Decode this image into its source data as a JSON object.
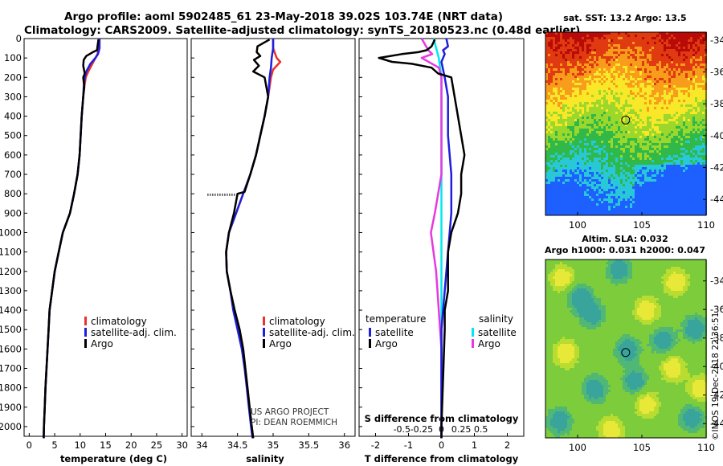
{
  "header": {
    "title_line1": "Argo profile: aoml 5902485_61 23-May-2018 39.02S 103.74E (NRT data)",
    "title_line2": "Climatology: CARS2009. Satellite-adjusted climatology: synTS_20180523.nc (0.48d earlier)"
  },
  "colors": {
    "climatology": "#e8322a",
    "satellite_adj": "#1e1edc",
    "argo": "#000000",
    "t_diff_satellite": "#1e1edc",
    "s_diff_satellite": "#00e8f0",
    "s_diff_argo": "#e838e0"
  },
  "chart_data": [
    {
      "type": "line",
      "name": "temperature-profile",
      "xlabel": "temperature (deg C)",
      "ylabel": "depth",
      "xlim": [
        -1,
        31
      ],
      "ylim": [
        2050,
        0
      ],
      "xticks": [
        0,
        5,
        10,
        15,
        20,
        25,
        30
      ],
      "yticks": [
        0,
        100,
        200,
        300,
        400,
        500,
        600,
        700,
        800,
        900,
        1000,
        1100,
        1200,
        1300,
        1400,
        1500,
        1600,
        1700,
        1800,
        1900,
        2000
      ],
      "legend": [
        "climatology",
        "satellite-adj. clim.",
        "Argo"
      ],
      "series": [
        {
          "name": "climatology",
          "points": [
            [
              13.6,
              0
            ],
            [
              13.6,
              50
            ],
            [
              13.4,
              80
            ],
            [
              13.0,
              100
            ],
            [
              12.4,
              130
            ],
            [
              11.6,
              170
            ],
            [
              11.1,
              200
            ],
            [
              10.8,
              250
            ],
            [
              10.6,
              300
            ],
            [
              10.3,
              400
            ],
            [
              10.1,
              500
            ],
            [
              9.9,
              600
            ],
            [
              9.5,
              700
            ],
            [
              8.8,
              800
            ],
            [
              8.0,
              900
            ],
            [
              6.6,
              1000
            ],
            [
              5.8,
              1100
            ],
            [
              5.0,
              1200
            ],
            [
              4.5,
              1300
            ],
            [
              4.0,
              1400
            ],
            [
              3.8,
              1500
            ],
            [
              3.6,
              1600
            ],
            [
              3.4,
              1700
            ],
            [
              3.2,
              1800
            ],
            [
              3.05,
              1900
            ],
            [
              2.9,
              2000
            ],
            [
              2.85,
              2060
            ]
          ]
        },
        {
          "name": "satellite-adj. clim.",
          "points": [
            [
              13.8,
              0
            ],
            [
              13.8,
              50
            ],
            [
              13.5,
              80
            ],
            [
              13.0,
              100
            ],
            [
              12.0,
              130
            ],
            [
              11.2,
              170
            ],
            [
              10.9,
              200
            ],
            [
              10.7,
              250
            ],
            [
              10.6,
              300
            ],
            [
              10.3,
              400
            ],
            [
              10.1,
              500
            ],
            [
              9.9,
              600
            ],
            [
              9.5,
              700
            ],
            [
              8.8,
              800
            ],
            [
              8.0,
              900
            ],
            [
              6.6,
              1000
            ],
            [
              5.8,
              1100
            ],
            [
              5.0,
              1200
            ],
            [
              4.5,
              1300
            ],
            [
              4.0,
              1400
            ],
            [
              3.8,
              1500
            ],
            [
              3.6,
              1600
            ],
            [
              3.4,
              1700
            ],
            [
              3.2,
              1800
            ],
            [
              3.05,
              1900
            ],
            [
              2.9,
              2000
            ],
            [
              2.85,
              2060
            ]
          ]
        },
        {
          "name": "Argo",
          "points": [
            [
              13.6,
              5
            ],
            [
              13.4,
              40
            ],
            [
              13.3,
              60
            ],
            [
              12.5,
              70
            ],
            [
              11.2,
              90
            ],
            [
              10.7,
              110
            ],
            [
              10.6,
              140
            ],
            [
              10.9,
              180
            ],
            [
              10.6,
              200
            ],
            [
              10.8,
              250
            ],
            [
              10.6,
              300
            ],
            [
              10.3,
              400
            ],
            [
              10.1,
              500
            ],
            [
              9.9,
              600
            ],
            [
              9.5,
              700
            ],
            [
              8.8,
              800
            ],
            [
              8.0,
              900
            ],
            [
              6.6,
              1000
            ],
            [
              5.8,
              1100
            ],
            [
              5.0,
              1200
            ],
            [
              4.5,
              1300
            ],
            [
              4.0,
              1400
            ],
            [
              3.8,
              1500
            ],
            [
              3.6,
              1600
            ],
            [
              3.4,
              1700
            ],
            [
              3.2,
              1800
            ],
            [
              3.05,
              1900
            ],
            [
              2.9,
              2000
            ],
            [
              2.85,
              2060
            ]
          ]
        }
      ]
    },
    {
      "type": "line",
      "name": "salinity-profile",
      "xlabel": "salinity",
      "ylim": [
        2050,
        0
      ],
      "xlim": [
        33.85,
        36.15
      ],
      "xticks": [
        34,
        34.5,
        35,
        35.5,
        36
      ],
      "xticklabels": [
        "34",
        "34.5",
        "35",
        "35.5",
        "36"
      ],
      "legend": [
        "climatology",
        "satellite-adj. clim.",
        "Argo"
      ],
      "credit": [
        "US ARGO PROJECT",
        "PI: DEAN ROEMMICH"
      ],
      "series": [
        {
          "name": "climatology",
          "points": [
            [
              35.0,
              0
            ],
            [
              35.0,
              50
            ],
            [
              35.05,
              100
            ],
            [
              35.1,
              120
            ],
            [
              35.0,
              160
            ],
            [
              34.97,
              200
            ],
            [
              34.93,
              300
            ],
            [
              34.88,
              400
            ],
            [
              34.82,
              500
            ],
            [
              34.76,
              600
            ],
            [
              34.68,
              700
            ],
            [
              34.58,
              800
            ],
            [
              34.48,
              900
            ],
            [
              34.38,
              1000
            ],
            [
              34.34,
              1100
            ],
            [
              34.35,
              1200
            ],
            [
              34.4,
              1300
            ],
            [
              34.46,
              1400
            ],
            [
              34.53,
              1500
            ],
            [
              34.58,
              1600
            ],
            [
              34.61,
              1700
            ],
            [
              34.64,
              1800
            ],
            [
              34.67,
              1900
            ],
            [
              34.7,
              2000
            ],
            [
              34.72,
              2060
            ]
          ]
        },
        {
          "name": "satellite-adj. clim.",
          "points": [
            [
              35.0,
              0
            ],
            [
              35.0,
              50
            ],
            [
              34.98,
              100
            ],
            [
              34.97,
              150
            ],
            [
              34.95,
              200
            ],
            [
              34.93,
              300
            ],
            [
              34.88,
              400
            ],
            [
              34.82,
              500
            ],
            [
              34.76,
              600
            ],
            [
              34.68,
              700
            ],
            [
              34.58,
              800
            ],
            [
              34.48,
              900
            ],
            [
              34.38,
              1000
            ],
            [
              34.34,
              1100
            ],
            [
              34.35,
              1200
            ],
            [
              34.4,
              1300
            ],
            [
              34.44,
              1400
            ],
            [
              34.5,
              1500
            ],
            [
              34.56,
              1600
            ],
            [
              34.6,
              1700
            ],
            [
              34.63,
              1800
            ],
            [
              34.66,
              1900
            ],
            [
              34.69,
              2000
            ],
            [
              34.71,
              2060
            ]
          ]
        },
        {
          "name": "Argo",
          "points": [
            [
              34.95,
              5
            ],
            [
              34.78,
              40
            ],
            [
              34.77,
              70
            ],
            [
              34.82,
              90
            ],
            [
              34.73,
              110
            ],
            [
              34.8,
              140
            ],
            [
              34.72,
              170
            ],
            [
              34.88,
              200
            ],
            [
              34.93,
              300
            ],
            [
              34.88,
              400
            ],
            [
              34.82,
              500
            ],
            [
              34.76,
              600
            ],
            [
              34.68,
              700
            ],
            [
              34.6,
              790
            ],
            [
              34.5,
              800
            ],
            [
              34.45,
              900
            ],
            [
              34.38,
              1000
            ],
            [
              34.34,
              1100
            ],
            [
              34.35,
              1200
            ],
            [
              34.4,
              1300
            ],
            [
              34.46,
              1400
            ],
            [
              34.53,
              1500
            ],
            [
              34.58,
              1600
            ],
            [
              34.61,
              1700
            ],
            [
              34.64,
              1800
            ],
            [
              34.67,
              1900
            ],
            [
              34.7,
              2000
            ],
            [
              34.72,
              2060
            ]
          ]
        }
      ]
    },
    {
      "type": "line",
      "name": "difference-profile",
      "xlabel": "T difference from climatology",
      "xlabel2": "S difference from climatology",
      "xlim": [
        -2.5,
        2.5
      ],
      "ylim": [
        2050,
        0
      ],
      "xticks": [
        -2,
        -1,
        0,
        1,
        2
      ],
      "xticklabels_s": [
        "-0.5",
        "-0.25",
        "0",
        "0.25",
        "0.5"
      ],
      "legend_left_title": "temperature",
      "legend_right_title": "salinity",
      "legend_left": [
        "satellite",
        "Argo"
      ],
      "legend_right": [
        "satellite",
        "Argo"
      ],
      "series": [
        {
          "name": "T satellite",
          "points": [
            [
              0.15,
              0
            ],
            [
              0.2,
              40
            ],
            [
              0.05,
              60
            ],
            [
              0.1,
              80
            ],
            [
              0.0,
              120
            ],
            [
              0.1,
              200
            ],
            [
              0.2,
              300
            ],
            [
              0.2,
              500
            ],
            [
              0.3,
              700
            ],
            [
              0.3,
              900
            ],
            [
              0.2,
              1100
            ],
            [
              0.1,
              1300
            ],
            [
              0.0,
              1500
            ],
            [
              0.0,
              2000
            ],
            [
              0.0,
              2060
            ]
          ]
        },
        {
          "name": "T Argo",
          "points": [
            [
              -0.2,
              5
            ],
            [
              -0.3,
              40
            ],
            [
              -0.45,
              60
            ],
            [
              -0.7,
              70
            ],
            [
              -1.2,
              80
            ],
            [
              -1.9,
              100
            ],
            [
              -1.5,
              120
            ],
            [
              -0.9,
              130
            ],
            [
              -0.3,
              150
            ],
            [
              -0.1,
              180
            ],
            [
              0.3,
              200
            ],
            [
              0.4,
              300
            ],
            [
              0.5,
              400
            ],
            [
              0.6,
              500
            ],
            [
              0.7,
              600
            ],
            [
              0.6,
              700
            ],
            [
              0.6,
              800
            ],
            [
              0.5,
              900
            ],
            [
              0.3,
              1000
            ],
            [
              0.2,
              1100
            ],
            [
              0.2,
              1200
            ],
            [
              0.2,
              1300
            ],
            [
              0.1,
              1400
            ],
            [
              0.1,
              1500
            ],
            [
              0.0,
              2000
            ],
            [
              0.0,
              2060
            ]
          ]
        },
        {
          "name": "S satellite",
          "points": [
            [
              -0.06,
              0
            ],
            [
              -0.02,
              100
            ],
            [
              0.0,
              200
            ],
            [
              0.0,
              2060
            ]
          ]
        },
        {
          "name": "S Argo",
          "points": [
            [
              -0.15,
              0
            ],
            [
              -0.1,
              60
            ],
            [
              -0.07,
              80
            ],
            [
              -0.15,
              100
            ],
            [
              -0.02,
              150
            ],
            [
              0.0,
              200
            ],
            [
              0.0,
              700
            ],
            [
              -0.05,
              900
            ],
            [
              -0.08,
              1000
            ],
            [
              -0.04,
              1200
            ],
            [
              -0.02,
              1400
            ],
            [
              0.0,
              1600
            ],
            [
              0.0,
              2060
            ]
          ]
        }
      ]
    },
    {
      "type": "heatmap",
      "name": "sst-map",
      "title": "sat. SST: 13.2 Argo: 13.5",
      "xlim": [
        97.5,
        110
      ],
      "ylim": [
        -45,
        -33.5
      ],
      "xticks": [
        100,
        105,
        110
      ],
      "yticks": [
        -34,
        -36,
        -38,
        -40,
        -42,
        -44
      ],
      "marker": {
        "lon": 103.74,
        "lat": -39.02
      },
      "colorscale": [
        "#1e60ff",
        "#28c8d8",
        "#30b848",
        "#9cd82c",
        "#f8e828",
        "#f89c1c",
        "#e03a10",
        "#b80a08"
      ]
    },
    {
      "type": "heatmap",
      "name": "sla-map",
      "title_line1": "Altim. SLA: 0.032",
      "title_line2": "Argo h1000: 0.031 h2000: 0.047",
      "xlim": [
        97.5,
        110
      ],
      "ylim": [
        -45,
        -32.5
      ],
      "xticks": [
        100,
        105,
        110
      ],
      "yticks": [
        -34,
        -36,
        -38,
        -40,
        -42,
        -44
      ],
      "marker": {
        "lon": 103.74,
        "lat": -39.02
      }
    }
  ],
  "footer": {
    "stamp": "©IMOS 19-Dec-2018 22:36:51"
  }
}
